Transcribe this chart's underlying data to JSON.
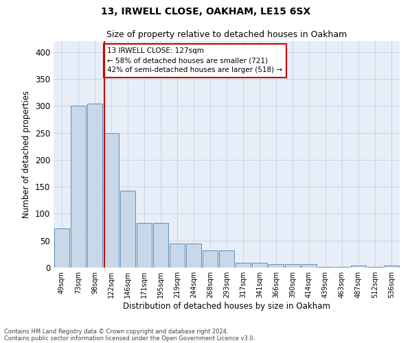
{
  "title1": "13, IRWELL CLOSE, OAKHAM, LE15 6SX",
  "title2": "Size of property relative to detached houses in Oakham",
  "xlabel": "Distribution of detached houses by size in Oakham",
  "ylabel": "Number of detached properties",
  "footnote1": "Contains HM Land Registry data © Crown copyright and database right 2024.",
  "footnote2": "Contains public sector information licensed under the Open Government Licence v3.0.",
  "annotation_line1": "13 IRWELL CLOSE: 127sqm",
  "annotation_line2": "← 58% of detached houses are smaller (721)",
  "annotation_line3": "42% of semi-detached houses are larger (518) →",
  "bar_color": "#c8d8e8",
  "bar_edge_color": "#5b8db8",
  "vline_color": "#cc0000",
  "annotation_box_edge": "#cc0000",
  "grid_color": "#c8d4e4",
  "bg_color": "#e8eef8",
  "categories": [
    "49sqm",
    "73sqm",
    "98sqm",
    "122sqm",
    "146sqm",
    "171sqm",
    "195sqm",
    "219sqm",
    "244sqm",
    "268sqm",
    "293sqm",
    "317sqm",
    "341sqm",
    "366sqm",
    "390sqm",
    "414sqm",
    "439sqm",
    "463sqm",
    "487sqm",
    "512sqm",
    "536sqm"
  ],
  "values": [
    72,
    300,
    304,
    249,
    143,
    83,
    83,
    45,
    44,
    32,
    32,
    9,
    9,
    6,
    6,
    6,
    1,
    1,
    4,
    1,
    4
  ],
  "ylim": [
    0,
    420
  ],
  "yticks": [
    0,
    50,
    100,
    150,
    200,
    250,
    300,
    350,
    400
  ],
  "vline_pos": 2.57,
  "figsize": [
    6.0,
    5.0
  ],
  "dpi": 100
}
